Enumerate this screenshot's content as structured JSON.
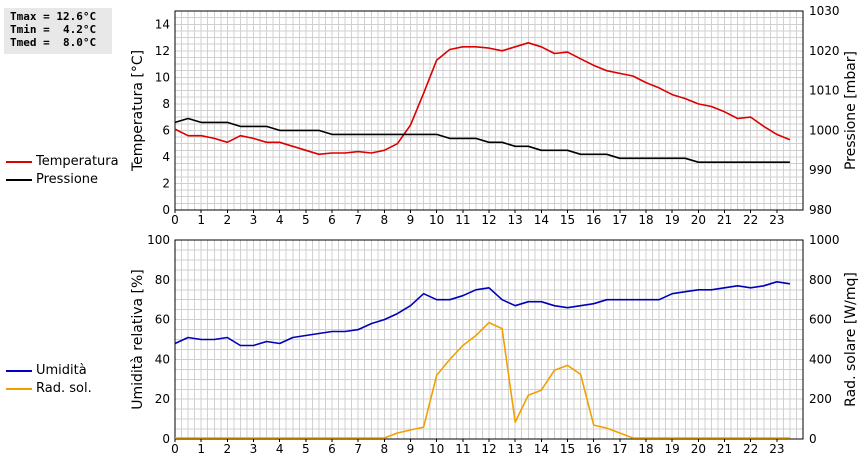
{
  "stats": {
    "tmax": "Tmax = 12.6°C",
    "tmin": "Tmin =  4.2°C",
    "tmed": "Tmed =  8.0°C"
  },
  "colors": {
    "temperature": "#dd0000",
    "pressure": "#000000",
    "humidity": "#0000bb",
    "radiation": "#f0a000",
    "grid": "#d0d0d0"
  },
  "legend_top": [
    {
      "label": "Temperatura",
      "color": "#dd0000"
    },
    {
      "label": "Pressione",
      "color": "#000000"
    }
  ],
  "legend_bottom": [
    {
      "label": "Umidità",
      "color": "#0000bb"
    },
    {
      "label": "Rad. sol.",
      "color": "#f0a000"
    }
  ],
  "chart_data": [
    {
      "type": "line",
      "ylabel": "Temperatura [°C]",
      "y2label": "Pressione [mbar]",
      "xlim": [
        0,
        24
      ],
      "ylim": [
        0,
        15
      ],
      "y2lim": [
        980,
        1030
      ],
      "grid": true,
      "x_ticks": [
        "0",
        "1",
        "2",
        "3",
        "4",
        "5",
        "6",
        "7",
        "8",
        "9",
        "10",
        "11",
        "12",
        "13",
        "14",
        "15",
        "16",
        "17",
        "18",
        "19",
        "20",
        "21",
        "22",
        "23"
      ],
      "y_ticks": [
        "0",
        "2",
        "4",
        "6",
        "8",
        "10",
        "12",
        "14"
      ],
      "y2_ticks": [
        "980",
        "990",
        "1000",
        "1010",
        "1020",
        "1030"
      ],
      "series": [
        {
          "name": "Temperatura",
          "axis": "left",
          "x": [
            0,
            0.5,
            1,
            1.5,
            2,
            2.5,
            3,
            3.5,
            4,
            4.5,
            5,
            5.5,
            6,
            6.5,
            7,
            7.5,
            8,
            8.5,
            9,
            9.5,
            10,
            10.5,
            11,
            11.5,
            12,
            12.5,
            13,
            13.5,
            14,
            14.5,
            15,
            15.5,
            16,
            16.5,
            17,
            17.5,
            18,
            18.5,
            19,
            19.5,
            20,
            20.5,
            21,
            21.5,
            22,
            22.5,
            23,
            23.5
          ],
          "y": [
            6.1,
            5.6,
            5.6,
            5.4,
            5.1,
            5.6,
            5.4,
            5.1,
            5.1,
            4.8,
            4.5,
            4.2,
            4.3,
            4.3,
            4.4,
            4.3,
            4.5,
            5.0,
            6.4,
            8.8,
            11.3,
            12.1,
            12.3,
            12.3,
            12.2,
            12.0,
            12.3,
            12.6,
            12.3,
            11.8,
            11.9,
            11.4,
            10.9,
            10.5,
            10.3,
            10.1,
            9.6,
            9.2,
            8.7,
            8.4,
            8.0,
            7.8,
            7.4,
            6.9,
            7.0,
            6.3,
            5.7,
            5.3
          ]
        },
        {
          "name": "Pressione",
          "axis": "right",
          "x": [
            0,
            0.5,
            1,
            1.5,
            2,
            2.5,
            3,
            3.5,
            4,
            4.5,
            5,
            5.5,
            6,
            6.5,
            7,
            7.5,
            8,
            8.5,
            9,
            9.5,
            10,
            10.5,
            11,
            11.5,
            12,
            12.5,
            13,
            13.5,
            14,
            14.5,
            15,
            15.5,
            16,
            16.5,
            17,
            17.5,
            18,
            18.5,
            19,
            19.5,
            20,
            20.5,
            21,
            21.5,
            22,
            22.5,
            23,
            23.5
          ],
          "y": [
            1002,
            1003,
            1002,
            1002,
            1002,
            1001,
            1001,
            1001,
            1000,
            1000,
            1000,
            1000,
            999,
            999,
            999,
            999,
            999,
            999,
            999,
            999,
            999,
            998,
            998,
            998,
            997,
            997,
            996,
            996,
            995,
            995,
            995,
            994,
            994,
            994,
            993,
            993,
            993,
            993,
            993,
            993,
            992,
            992,
            992,
            992,
            992,
            992,
            992,
            992
          ]
        }
      ]
    },
    {
      "type": "line",
      "ylabel": "Umidità relativa [%]",
      "y2label": "Rad. solare [W/mq]",
      "xlim": [
        0,
        24
      ],
      "ylim": [
        0,
        100
      ],
      "y2lim": [
        0,
        1000
      ],
      "grid": true,
      "x_ticks": [
        "0",
        "1",
        "2",
        "3",
        "4",
        "5",
        "6",
        "7",
        "8",
        "9",
        "10",
        "11",
        "12",
        "13",
        "14",
        "15",
        "16",
        "17",
        "18",
        "19",
        "20",
        "21",
        "22",
        "23"
      ],
      "y_ticks": [
        "0",
        "20",
        "40",
        "60",
        "80",
        "100"
      ],
      "y2_ticks": [
        "0",
        "200",
        "400",
        "600",
        "800",
        "1000"
      ],
      "series": [
        {
          "name": "Umidità",
          "axis": "left",
          "x": [
            0,
            0.5,
            1,
            1.5,
            2,
            2.5,
            3,
            3.5,
            4,
            4.5,
            5,
            5.5,
            6,
            6.5,
            7,
            7.5,
            8,
            8.5,
            9,
            9.5,
            10,
            10.5,
            11,
            11.5,
            12,
            12.5,
            13,
            13.5,
            14,
            14.5,
            15,
            15.5,
            16,
            16.5,
            17,
            17.5,
            18,
            18.5,
            19,
            19.5,
            20,
            20.5,
            21,
            21.5,
            22,
            22.5,
            23,
            23.5
          ],
          "y": [
            48,
            51,
            50,
            50,
            51,
            47,
            47,
            49,
            48,
            51,
            52,
            53,
            54,
            54,
            55,
            58,
            60,
            63,
            67,
            73,
            70,
            70,
            72,
            75,
            76,
            70,
            67,
            69,
            69,
            67,
            66,
            67,
            68,
            70,
            70,
            70,
            70,
            70,
            73,
            74,
            75,
            75,
            76,
            77,
            76,
            77,
            79,
            78
          ]
        },
        {
          "name": "Rad. sol.",
          "axis": "right",
          "x": [
            0,
            0.5,
            1,
            1.5,
            2,
            2.5,
            3,
            3.5,
            4,
            4.5,
            5,
            5.5,
            6,
            6.5,
            7,
            7.5,
            8,
            8.5,
            9,
            9.5,
            10,
            10.5,
            11,
            11.5,
            12,
            12.5,
            13,
            13.5,
            14,
            14.5,
            15,
            15.5,
            16,
            16.5,
            17,
            17.5,
            18,
            18.5,
            19,
            19.5,
            20,
            20.5,
            21,
            21.5,
            22,
            22.5,
            23,
            23.5
          ],
          "y": [
            5,
            5,
            5,
            5,
            5,
            5,
            5,
            5,
            5,
            5,
            5,
            5,
            5,
            5,
            5,
            5,
            5,
            30,
            45,
            60,
            320,
            400,
            470,
            520,
            585,
            555,
            85,
            220,
            245,
            345,
            370,
            325,
            70,
            55,
            30,
            5,
            5,
            5,
            5,
            5,
            5,
            5,
            5,
            5,
            5,
            5,
            5,
            5
          ]
        }
      ]
    }
  ]
}
